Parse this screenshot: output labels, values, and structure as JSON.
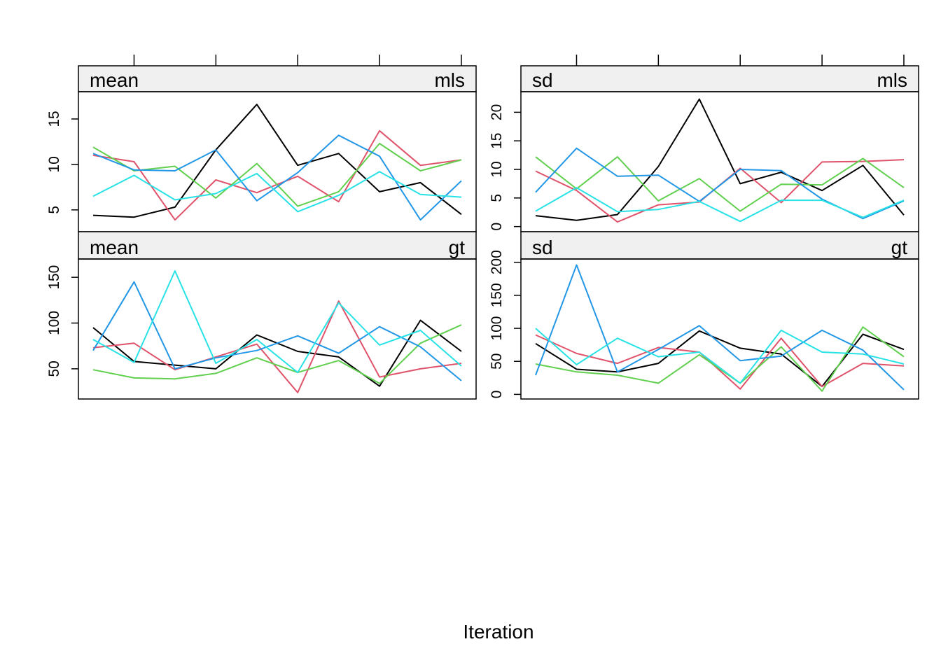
{
  "chart_data": {
    "type": "line",
    "xlabel": "Iteration",
    "ylabel": "",
    "x": [
      1,
      2,
      3,
      4,
      5,
      6,
      7,
      8,
      9,
      10
    ],
    "series_colors": [
      "#000000",
      "#DF536B",
      "#61D04F",
      "#2297E6",
      "#28E2E5"
    ],
    "grid": false,
    "panels": [
      {
        "stat": "mean",
        "variable": "mls",
        "ylim": [
          2.6,
          18.0
        ],
        "yticks": [
          5,
          10,
          15
        ],
        "series": [
          {
            "values": [
              4.4,
              4.2,
              5.3,
              11.6,
              16.6,
              9.9,
              11.2,
              7.0,
              8.0,
              4.5
            ]
          },
          {
            "values": [
              11.0,
              10.3,
              3.9,
              8.3,
              6.9,
              8.7,
              5.9,
              13.7,
              9.9,
              10.5
            ]
          },
          {
            "values": [
              11.9,
              9.3,
              9.8,
              6.3,
              10.1,
              5.4,
              7.0,
              12.3,
              9.3,
              10.5
            ]
          },
          {
            "values": [
              11.2,
              9.4,
              9.3,
              11.6,
              6.0,
              9.1,
              13.2,
              10.9,
              3.9,
              8.2
            ]
          },
          {
            "values": [
              6.5,
              8.8,
              6.1,
              6.8,
              9.0,
              4.8,
              6.6,
              9.2,
              6.7,
              6.4
            ]
          }
        ]
      },
      {
        "stat": "sd",
        "variable": "mls",
        "ylim": [
          -0.9,
          23.6
        ],
        "yticks": [
          0,
          5,
          10,
          15,
          20
        ],
        "series": [
          {
            "values": [
              1.9,
              1.1,
              2.1,
              10.5,
              22.3,
              7.5,
              9.5,
              6.3,
              10.7,
              2.0
            ]
          },
          {
            "values": [
              9.7,
              6.3,
              0.8,
              3.8,
              4.3,
              10.2,
              4.2,
              11.3,
              11.4,
              11.7
            ]
          },
          {
            "values": [
              12.2,
              6.6,
              12.2,
              4.5,
              8.4,
              2.7,
              7.4,
              7.3,
              11.9,
              6.8
            ]
          },
          {
            "values": [
              6.0,
              13.7,
              8.8,
              9.0,
              4.4,
              10.0,
              9.8,
              4.8,
              1.4,
              4.5
            ]
          },
          {
            "values": [
              2.7,
              6.8,
              2.6,
              3.0,
              4.4,
              0.9,
              4.6,
              4.6,
              1.6,
              4.6
            ]
          }
        ]
      },
      {
        "stat": "mean",
        "variable": "gt",
        "ylim": [
          17.0,
          170.0
        ],
        "yticks": [
          50,
          100,
          150
        ],
        "series": [
          {
            "values": [
              95,
              58,
              54,
              50,
              87,
              69,
              63,
              31,
              103,
              69
            ]
          },
          {
            "values": [
              73,
              78,
              49,
              63,
              77,
              24,
              124,
              41,
              50,
              56
            ]
          },
          {
            "values": [
              49,
              40,
              39,
              45,
              62,
              46,
              59,
              34,
              78,
              98
            ]
          },
          {
            "values": [
              70,
              145,
              50,
              62,
              70,
              86,
              67,
              96,
              74,
              37
            ]
          },
          {
            "values": [
              82,
              57,
              157,
              56,
              82,
              46,
              122,
              76,
              92,
              53
            ]
          }
        ]
      },
      {
        "stat": "sd",
        "variable": "gt",
        "ylim": [
          -7.0,
          205.0
        ],
        "yticks": [
          0,
          50,
          100,
          150,
          200
        ],
        "series": [
          {
            "values": [
              77,
              38,
              34,
              47,
              96,
              70,
              61,
              12,
              91,
              68
            ]
          },
          {
            "values": [
              90,
              62,
              47,
              71,
              64,
              8,
              85,
              12,
              47,
              43
            ]
          },
          {
            "values": [
              46,
              34,
              29,
              17,
              60,
              17,
              72,
              5,
              102,
              57
            ]
          },
          {
            "values": [
              29,
              196,
              34,
              68,
              104,
              51,
              58,
              97,
              67,
              7
            ]
          },
          {
            "values": [
              100,
              45,
              85,
              57,
              64,
              17,
              97,
              64,
              61,
              46
            ]
          }
        ]
      }
    ]
  }
}
